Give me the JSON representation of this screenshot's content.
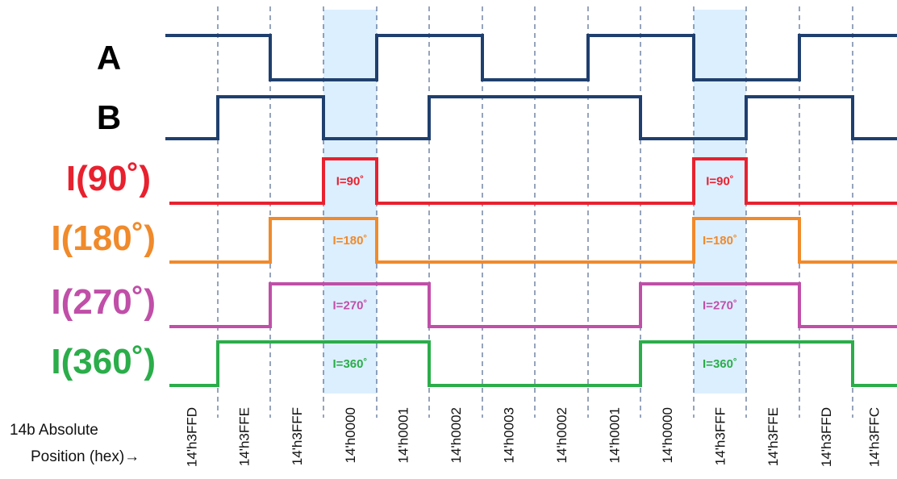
{
  "signals": [
    {
      "id": "A",
      "label": "A",
      "color": "#1f3f6e",
      "levels": [
        1,
        1,
        0,
        0,
        1,
        1,
        0,
        0,
        1,
        1,
        0,
        0,
        1,
        1
      ]
    },
    {
      "id": "B",
      "label": "B",
      "color": "#1f3f6e",
      "levels": [
        0,
        1,
        1,
        0,
        0,
        1,
        1,
        1,
        1,
        0,
        0,
        1,
        1,
        0
      ]
    },
    {
      "id": "I90",
      "label": "I(90˚)",
      "color": "#e8212f",
      "levels": [
        0,
        0,
        0,
        1,
        0,
        0,
        0,
        0,
        0,
        0,
        1,
        0,
        0,
        0
      ],
      "marker": "I=90˚"
    },
    {
      "id": "I180",
      "label": "I(180˚)",
      "color": "#f08a2b",
      "levels": [
        0,
        0,
        1,
        1,
        0,
        0,
        0,
        0,
        0,
        0,
        1,
        1,
        0,
        0
      ],
      "marker": "I=180˚"
    },
    {
      "id": "I270",
      "label": "I(270˚)",
      "color": "#c04fa8",
      "levels": [
        0,
        0,
        1,
        1,
        1,
        0,
        0,
        0,
        0,
        1,
        1,
        1,
        0,
        0
      ],
      "marker": "I=270˚"
    },
    {
      "id": "I360",
      "label": "I(360˚)",
      "color": "#2bad4a",
      "levels": [
        0,
        1,
        1,
        1,
        1,
        0,
        0,
        0,
        0,
        1,
        1,
        1,
        1,
        0
      ],
      "marker": "I=360˚"
    }
  ],
  "positions": [
    "14'h3FFD",
    "14'h3FFE",
    "14'h3FFF",
    "14'h0000",
    "14'h0001",
    "14'h0002",
    "14'h0003",
    "14'h0002",
    "14'h0001",
    "14'h0000",
    "14'h3FFF",
    "14'h3FFE",
    "14'h3FFD",
    "14'h3FFC"
  ],
  "axis_caption": {
    "line1": "14b Absolute",
    "line2": "Position (hex)→"
  },
  "highlight_color": "#dcefff",
  "highlight_intervals": [
    3,
    10
  ]
}
